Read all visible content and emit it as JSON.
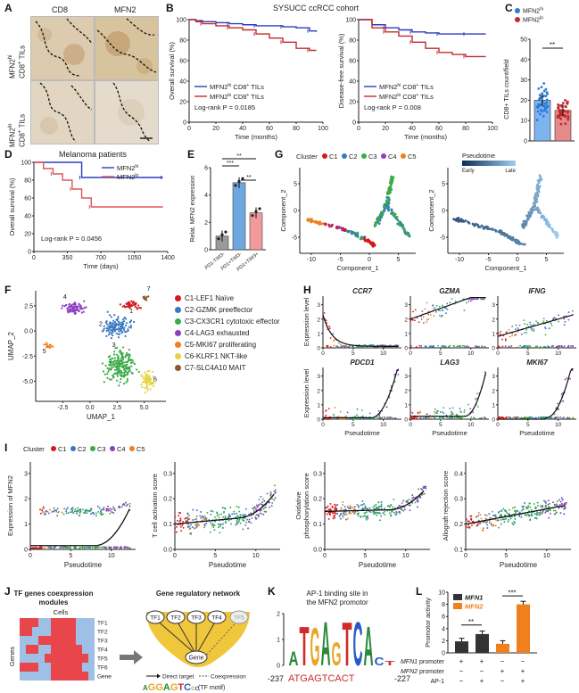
{
  "panels": {
    "A": "A",
    "B": "B",
    "C": "C",
    "D": "D",
    "E": "E",
    "F": "F",
    "G": "G",
    "H": "H",
    "I": "I",
    "J": "J",
    "K": "K",
    "L": "L"
  },
  "A": {
    "col1": "CD8",
    "col2": "MFN2",
    "row1_a": "MFN2",
    "row1_sup": "hi",
    "row1_b": "CD8",
    "row1_sup2": "+",
    "row1_c": " TILs",
    "row2_a": "MFN2",
    "row2_sup": "lo",
    "row2_b": "CD8",
    "row2_sup2": "+",
    "row2_c": " TILs"
  },
  "B": {
    "title": "SYSUCC ccRCC cohort",
    "os": {
      "ylabel": "Overall survival (%)",
      "xlabel": "Time (months)",
      "xticks": [
        "0",
        "20",
        "40",
        "60",
        "80",
        "100"
      ],
      "yticks": [
        "0",
        "20",
        "40",
        "60",
        "80",
        "100"
      ],
      "leg_hi": "MFN2",
      "leg_hi_sup": "hi",
      "leg_hi_b": " CD8",
      "leg_hi_sup2": "+",
      "leg_hi_c": " TILs",
      "leg_lo": "MFN2",
      "leg_lo_sup": "lo",
      "leg_lo_b": " CD8",
      "leg_lo_sup2": "+",
      "leg_lo_c": " TILs",
      "pval": "Log-rank P = 0.0185"
    },
    "dfs": {
      "ylabel": "Disease-free survival (%)",
      "xlabel": "Time (months)",
      "xticks": [
        "0",
        "20",
        "40",
        "60",
        "80",
        "100"
      ],
      "yticks": [
        "0",
        "20",
        "40",
        "60",
        "80",
        "100"
      ],
      "leg_hi": "MFN2",
      "leg_hi_sup": "hi",
      "leg_hi_b": " CD8",
      "leg_hi_sup2": "+",
      "leg_hi_c": " TILs",
      "leg_lo": "MFN2",
      "leg_lo_sup": "lo",
      "leg_lo_b": " CD8",
      "leg_lo_sup2": "+",
      "leg_lo_c": " TILs",
      "pval": "Log-rank P = 0.008"
    }
  },
  "C": {
    "leg_hi": "MFN2",
    "leg_hi_sup": "hi",
    "leg_lo": "MFN2",
    "leg_lo_sup": "lo",
    "ylabel": "CD8+ TILs count/field",
    "yticks": [
      "0",
      "10",
      "20",
      "30",
      "40",
      "50"
    ],
    "sig": "**"
  },
  "D": {
    "title": "Melanoma patients",
    "leg_hi": "MFN2",
    "leg_hi_sup": "hi",
    "leg_lo": "MFN2",
    "leg_lo_sup": "lo",
    "ylabel": "Overall survival (%)",
    "xlabel": "Time (days)",
    "xticks": [
      "0",
      "350",
      "700",
      "1050",
      "1400"
    ],
    "yticks": [
      "0",
      "20",
      "40",
      "60",
      "80",
      "100"
    ],
    "pval": "Log-rank P = 0.0456"
  },
  "E": {
    "ylabel": "Relat. MFN2 expression",
    "yticks": [
      "0",
      "2",
      "4",
      "6"
    ],
    "sig1": "**",
    "sig2": "***",
    "sig3": "**",
    "cats": [
      "PD1-TIM3-",
      "PD1+TIM3-",
      "PD1+TIM3+"
    ]
  },
  "G": {
    "cluster_label": "Cluster",
    "clusters": [
      "C1",
      "C2",
      "C3",
      "C4",
      "C5"
    ],
    "colors": [
      "#d7191c",
      "#3a78c3",
      "#3aab48",
      "#8d3fc0",
      "#f07f1e"
    ],
    "pseudotime": "Pseudotime",
    "early": "Early",
    "late": "Late",
    "ylabel": "Component_2",
    "xlabel": "Component_1",
    "xticks": [
      "-10",
      "-5",
      "0",
      "5"
    ],
    "yticks": [
      "-5",
      "0",
      "5"
    ]
  },
  "F": {
    "ylabel": "UMAP_2",
    "xlabel": "UMAP_1",
    "xticks": [
      "-2.5",
      "0.0",
      "2.5",
      "5.0"
    ],
    "yticks": [
      "-5.0",
      "-2.5",
      "0.0",
      "2.5"
    ],
    "legend": [
      {
        "label": "C1-LEF1 Naïve",
        "color": "#d7191c"
      },
      {
        "label": "C2-GZMK preeffector",
        "color": "#3a78c3"
      },
      {
        "label": "C3-CX3CR1 cytotoxic effector",
        "color": "#3aab48"
      },
      {
        "label": "C4-LAG3 exhausted",
        "color": "#8d3fc0"
      },
      {
        "label": "C5-MKI67 proliferating",
        "color": "#f07f1e"
      },
      {
        "label": "C6-KLRF1 NKT-like",
        "color": "#e8d23c"
      },
      {
        "label": "C7-SLC4A10 MAIT",
        "color": "#8a5a2b"
      }
    ],
    "nums": [
      "1",
      "2",
      "3",
      "4",
      "5",
      "6",
      "7"
    ]
  },
  "H": {
    "genes": [
      "CCR7",
      "GZMA",
      "IFNG",
      "PDCD1",
      "LAG3",
      "MKI67"
    ],
    "ylabel": "Expression level",
    "xlabel": "Pseudotime",
    "yticks": [
      "0",
      "1",
      "2",
      "3"
    ],
    "xticks": [
      "0",
      "5",
      "10"
    ]
  },
  "I": {
    "cluster_label": "Cluster",
    "clusters": [
      "C1",
      "C2",
      "C3",
      "C4",
      "C5"
    ],
    "xlabel": "Pseudotime",
    "xticks": [
      "0",
      "5",
      "10"
    ],
    "y1": "Expression of MFN2",
    "y2": "T cell activation score",
    "y3a": "Oxidative",
    "y3b": "phosphorylation score",
    "y4": "Allograft rejection score",
    "yt1": [
      "0",
      "1",
      "2",
      "3"
    ],
    "yt2": [
      "0.0",
      "0.1",
      "0.2",
      "0.3"
    ],
    "yt3": [
      "0.0",
      "0.1",
      "0.2",
      "0.3"
    ],
    "yt4": [
      "0.1",
      "0.2",
      "0.3",
      "0.4"
    ]
  },
  "J": {
    "title1": "TF genes coexpression",
    "title2": "modules",
    "cells": "Cells",
    "genes": "Genes",
    "tfs": [
      "TF1",
      "TF2",
      "TF3",
      "TF4",
      "TF5",
      "TF6",
      "Gene"
    ],
    "grn_title": "Gene regulatory network",
    "nodes": [
      "TF1",
      "TF2",
      "TF3",
      "TF4",
      "TF5"
    ],
    "gene_node": "Gene",
    "direct": "Direct target",
    "coexp": "Coexpression",
    "motif": "AGGAGTCGC",
    "motif_note": "(TF motif)"
  },
  "K": {
    "title1": "AP-1 binding site in",
    "title2": "the MFN2 promotor",
    "left": "-237",
    "seq": "ATGAGTCACT",
    "right": "-227",
    "yticks": [
      "0",
      "1",
      "2"
    ]
  },
  "L": {
    "leg1": "MFN1",
    "leg2": "MFN2",
    "ylabel": "Promotor activity",
    "yticks": [
      "0",
      "2",
      "4",
      "6",
      "8",
      "10"
    ],
    "sig1": "**",
    "sig2": "***",
    "row1": "MFN1 promoter",
    "row2": "MFN2 promoter",
    "row3": "AP-1",
    "row1v": [
      "+",
      "+",
      "−",
      "−"
    ],
    "row2v": [
      "−",
      "−",
      "+",
      "+"
    ],
    "row3v": [
      "−",
      "+",
      "−",
      "+"
    ]
  },
  "chart_data": [
    {
      "type": "line",
      "panel": "B-left",
      "title": "SYSUCC ccRCC cohort",
      "xlabel": "Time (months)",
      "ylabel": "Overall survival (%)",
      "xlim": [
        0,
        100
      ],
      "ylim": [
        0,
        100
      ],
      "series": [
        {
          "name": "MFN2hi CD8+ TILs",
          "color": "#2a3ec0",
          "x": [
            0,
            5,
            10,
            20,
            30,
            40,
            50,
            60,
            70,
            80,
            90,
            95
          ],
          "y": [
            100,
            99,
            98,
            97,
            96,
            95,
            94,
            94,
            93,
            92,
            89,
            88
          ]
        },
        {
          "name": "MFN2lo CD8+ TILs",
          "color": "#c42a2a",
          "x": [
            0,
            5,
            10,
            20,
            30,
            40,
            50,
            60,
            70,
            80,
            90,
            95
          ],
          "y": [
            100,
            98,
            96,
            94,
            92,
            90,
            86,
            82,
            78,
            72,
            70,
            70
          ]
        }
      ]
    },
    {
      "type": "line",
      "panel": "B-right",
      "xlabel": "Time (months)",
      "ylabel": "Disease-free survival (%)",
      "xlim": [
        0,
        100
      ],
      "ylim": [
        0,
        100
      ],
      "series": [
        {
          "name": "MFN2hi CD8+ TILs",
          "color": "#2a3ec0",
          "x": [
            0,
            10,
            20,
            30,
            40,
            50,
            60,
            70,
            80,
            95
          ],
          "y": [
            100,
            95,
            92,
            90,
            88,
            87,
            86,
            86,
            86,
            86
          ]
        },
        {
          "name": "MFN2lo CD8+ TILs",
          "color": "#c42a2a",
          "x": [
            0,
            10,
            20,
            30,
            40,
            50,
            60,
            70,
            80,
            95
          ],
          "y": [
            100,
            92,
            88,
            84,
            78,
            72,
            68,
            66,
            64,
            64
          ]
        }
      ]
    },
    {
      "type": "bar",
      "panel": "C",
      "ylabel": "CD8+ TILs count/field",
      "ylim": [
        0,
        50
      ],
      "categories": [
        "MFN2hi",
        "MFN2lo"
      ],
      "values": [
        20,
        15
      ],
      "colors": [
        "#2d7ad6",
        "#c42a2a"
      ]
    },
    {
      "type": "line",
      "panel": "D",
      "title": "Melanoma patients",
      "xlabel": "Time (days)",
      "ylabel": "Overall survival (%)",
      "xlim": [
        0,
        1400
      ],
      "ylim": [
        0,
        100
      ],
      "series": [
        {
          "name": "MFN2hi",
          "color": "#2a3ec0",
          "x": [
            0,
            300,
            500,
            700,
            1350
          ],
          "y": [
            100,
            100,
            83,
            83,
            83
          ]
        },
        {
          "name": "MFN2lo",
          "color": "#e05555",
          "x": [
            0,
            100,
            200,
            300,
            400,
            500,
            600,
            1350
          ],
          "y": [
            100,
            93,
            87,
            80,
            70,
            60,
            50,
            50
          ]
        }
      ]
    },
    {
      "type": "bar",
      "panel": "E",
      "ylabel": "Relat. MFN2 expression",
      "ylim": [
        0,
        6
      ],
      "categories": [
        "PD1-TIM3-",
        "PD1+TIM3-",
        "PD1+TIM3+"
      ],
      "values": [
        1.0,
        4.9,
        2.7
      ],
      "colors": [
        "#9a9a9a",
        "#6fa8e0",
        "#f29a9a"
      ]
    },
    {
      "type": "bar",
      "panel": "L",
      "ylabel": "Promotor activity",
      "ylim": [
        0,
        10
      ],
      "categories": [
        "1",
        "2",
        "3",
        "4"
      ],
      "values": [
        1.9,
        3.1,
        1.5,
        8.0
      ],
      "colors": [
        "#333333",
        "#333333",
        "#f07f1e",
        "#f07f1e"
      ]
    }
  ]
}
